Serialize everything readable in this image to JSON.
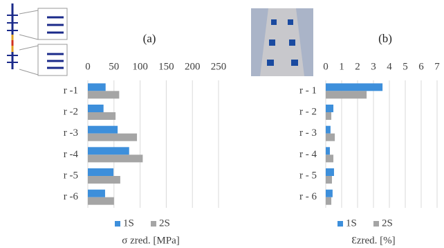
{
  "chart_data": [
    {
      "type": "bar",
      "orientation": "horizontal",
      "title": "(a)",
      "x_label": "σ zred. [MPa]",
      "categories": [
        "r -1",
        "r -2",
        "r -3",
        "r -4",
        "r -5",
        "r -6"
      ],
      "series": [
        {
          "name": "1S",
          "color": "#3d8fdb",
          "values": [
            34,
            30,
            57,
            79,
            49,
            33
          ]
        },
        {
          "name": "2S",
          "color": "#a5a5a5",
          "values": [
            60,
            53,
            94,
            105,
            62,
            50
          ]
        }
      ],
      "xlim": [
        0,
        250
      ],
      "xticks": [
        0,
        50,
        100,
        150,
        200,
        250
      ],
      "grid": true,
      "legend": "bottom"
    },
    {
      "type": "bar",
      "orientation": "horizontal",
      "title": "(b)",
      "x_label": "Ɛzred. [%]",
      "categories": [
        "r - 1",
        "r - 2",
        "r - 3",
        "r - 4",
        "r - 5",
        "r - 6"
      ],
      "series": [
        {
          "name": "1S",
          "color": "#3d8fdb",
          "values": [
            3.57,
            0.48,
            0.3,
            0.26,
            0.52,
            0.43
          ]
        },
        {
          "name": "2S",
          "color": "#a5a5a5",
          "values": [
            2.57,
            0.35,
            0.57,
            0.48,
            0.39,
            0.35
          ]
        }
      ],
      "xlim": [
        0,
        7
      ],
      "xticks": [
        0,
        1,
        2,
        3,
        4,
        5,
        6,
        7
      ],
      "grid": true,
      "legend": "bottom"
    }
  ]
}
